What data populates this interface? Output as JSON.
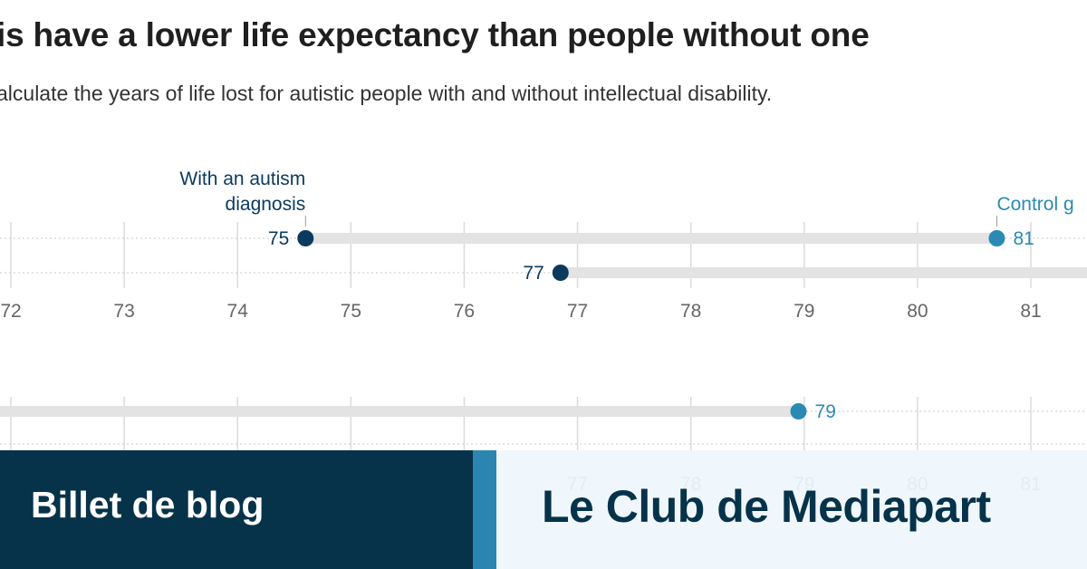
{
  "chart_data": {
    "type": "dot-range",
    "title": "is have a lower life expectancy than people without one",
    "subtitle": "alculate the years of life lost for autistic people with and without intellectual disability.",
    "xlim": [
      71.6,
      82.5
    ],
    "ticks": [
      72,
      73,
      74,
      75,
      76,
      77,
      78,
      79,
      80,
      81
    ],
    "panels": [
      {
        "rows": [
          {
            "autism": 74.6,
            "autism_label": "75",
            "control": 80.7,
            "control_label": "81"
          },
          {
            "autism": 76.85,
            "autism_label": "77",
            "control": null,
            "control_label": ""
          }
        ]
      },
      {
        "rows": [
          {
            "autism": null,
            "autism_label": "",
            "control": 78.95,
            "control_label": "79"
          }
        ]
      }
    ],
    "annotations": {
      "autism_line1": "With an autism",
      "autism_line2": "diagnosis",
      "control": "Control g"
    },
    "colors": {
      "autism": "#0b3a5e",
      "control": "#2a8ab3",
      "bar": "#e3e3e3"
    }
  },
  "banner": {
    "left_label": "Billet de blog",
    "right_label": "Le Club de Mediapart",
    "colors": {
      "dark": "#06334a",
      "accent": "#2a86b0",
      "light": "#eef6fc"
    }
  }
}
